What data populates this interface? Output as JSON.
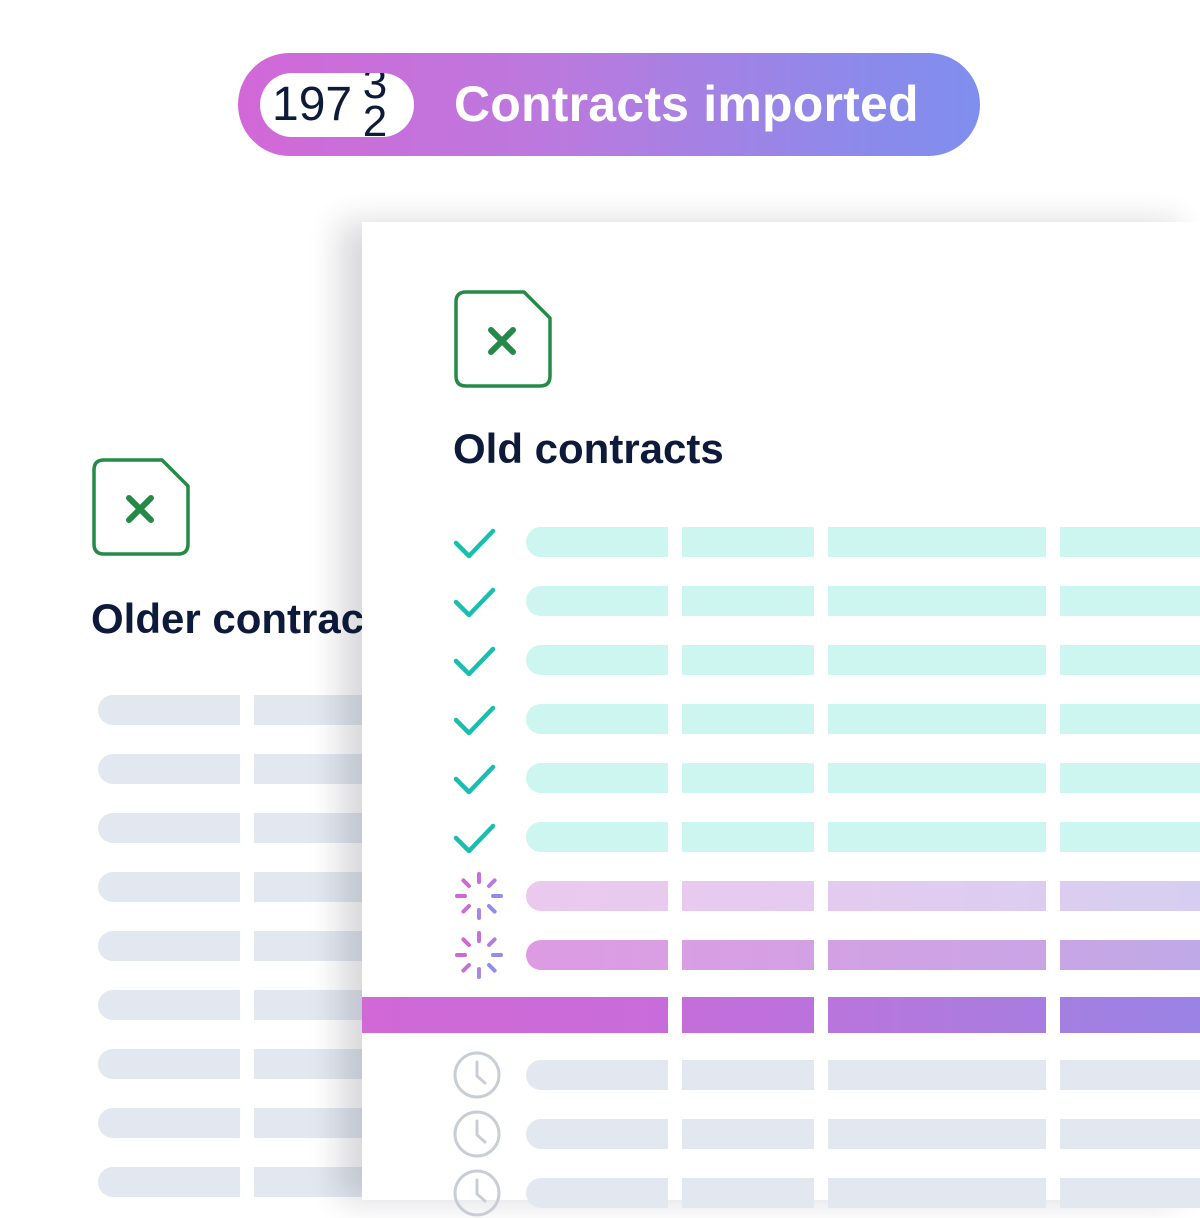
{
  "header": {
    "counter_prefix": "197",
    "counter_roll_top": "3",
    "counter_roll_bottom": "2",
    "label": "Contracts imported",
    "gradient_colors": [
      "#d268d8",
      "#7f8eee"
    ]
  },
  "back_card": {
    "title": "Older contracts",
    "icon": "spreadsheet-file-icon",
    "row_count": 9
  },
  "front_card": {
    "title": "Old contracts",
    "icon": "spreadsheet-file-icon",
    "rows": [
      {
        "status": "done",
        "icon": "checkmark-icon"
      },
      {
        "status": "done",
        "icon": "checkmark-icon"
      },
      {
        "status": "done",
        "icon": "checkmark-icon"
      },
      {
        "status": "done",
        "icon": "checkmark-icon"
      },
      {
        "status": "done",
        "icon": "checkmark-icon"
      },
      {
        "status": "done",
        "icon": "checkmark-icon"
      },
      {
        "status": "processing",
        "icon": "spinner-icon"
      },
      {
        "status": "processing",
        "icon": "spinner-icon"
      },
      {
        "status": "active",
        "icon": ""
      },
      {
        "status": "waiting",
        "icon": "clock-icon"
      },
      {
        "status": "waiting",
        "icon": "clock-icon"
      },
      {
        "status": "waiting",
        "icon": "clock-icon"
      }
    ]
  },
  "colors": {
    "done_bar": "#cdf6f1",
    "check": "#19bfae",
    "excel_green": "#258a48",
    "waiting_bar": "#e3e8f0",
    "clock": "#c9ced6",
    "title_text": "#0d1a3a"
  }
}
